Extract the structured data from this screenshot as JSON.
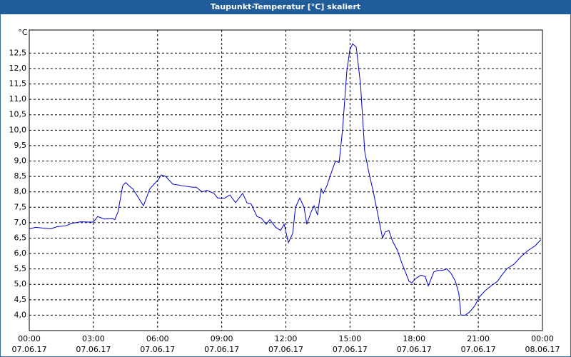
{
  "chart_data": {
    "type": "line",
    "title": "Taupunkt-Temperatur [°C] skaliert",
    "y_unit": "°C",
    "xlim": [
      0,
      24
    ],
    "xticks": [
      {
        "value": 0,
        "label": "00:00"
      },
      {
        "value": 3,
        "label": "03:00"
      },
      {
        "value": 6,
        "label": "06:00"
      },
      {
        "value": 9,
        "label": "09:00"
      },
      {
        "value": 12,
        "label": "12:00"
      },
      {
        "value": 15,
        "label": "15:00"
      },
      {
        "value": 18,
        "label": "18:00"
      },
      {
        "value": 21,
        "label": "21:00"
      },
      {
        "value": 24,
        "label": "00:00"
      }
    ],
    "xtick_dates": [
      "07.06.17",
      "07.06.17",
      "07.06.17",
      "07.06.17",
      "07.06.17",
      "07.06.17",
      "07.06.17",
      "07.06.17",
      "08.06.17"
    ],
    "ylim": [
      3.5,
      13.25
    ],
    "yticks": [
      {
        "value": 4,
        "label": "4,0"
      },
      {
        "value": 4.5,
        "label": "4,5"
      },
      {
        "value": 5,
        "label": "5,0"
      },
      {
        "value": 5.5,
        "label": "5,5"
      },
      {
        "value": 6,
        "label": "6,0"
      },
      {
        "value": 6.5,
        "label": "6,5"
      },
      {
        "value": 7,
        "label": "7,0"
      },
      {
        "value": 7.5,
        "label": "7,5"
      },
      {
        "value": 8,
        "label": "8,0"
      },
      {
        "value": 8.5,
        "label": "8,5"
      },
      {
        "value": 9,
        "label": "9,0"
      },
      {
        "value": 9.5,
        "label": "9,5"
      },
      {
        "value": 10,
        "label": "10,0"
      },
      {
        "value": 10.5,
        "label": "10,5"
      },
      {
        "value": 11,
        "label": "11,0"
      },
      {
        "value": 11.5,
        "label": "11,5"
      },
      {
        "value": 12,
        "label": "12,0"
      },
      {
        "value": 12.5,
        "label": "12,5"
      }
    ],
    "grid": true,
    "color": "#0000cc",
    "x": [
      0,
      0.3,
      0.7,
      1.0,
      1.3,
      1.7,
      2.0,
      2.4,
      2.8,
      3.0,
      3.2,
      3.5,
      3.9,
      4.0,
      4.15,
      4.37,
      4.51,
      4.74,
      4.84,
      5.34,
      5.64,
      6.04,
      6.17,
      6.38,
      6.71,
      7.14,
      7.64,
      7.81,
      8.08,
      8.31,
      8.64,
      8.81,
      9.15,
      9.38,
      9.65,
      9.98,
      10.18,
      10.38,
      10.65,
      10.85,
      11.08,
      11.25,
      11.52,
      11.75,
      11.92,
      12.12,
      12.32,
      12.45,
      12.65,
      12.85,
      12.98,
      13.18,
      13.32,
      13.48,
      13.65,
      13.75,
      13.92,
      14.09,
      14.32,
      14.49,
      14.65,
      14.85,
      14.99,
      15.12,
      15.29,
      15.49,
      15.69,
      15.89,
      16.09,
      16.32,
      16.52,
      16.65,
      16.82,
      16.99,
      17.22,
      17.42,
      17.59,
      17.76,
      17.89,
      18.09,
      18.32,
      18.52,
      18.66,
      18.92,
      19.09,
      19.33,
      19.53,
      19.73,
      19.93,
      20.09,
      20.19,
      20.39,
      20.59,
      20.83,
      21.06,
      21.33,
      21.6,
      21.9,
      22.1,
      22.33,
      22.66,
      23.0,
      23.33,
      23.66,
      23.93
    ],
    "values": [
      6.8,
      6.85,
      6.82,
      6.8,
      6.87,
      6.9,
      6.98,
      7.03,
      7.02,
      7.02,
      7.2,
      7.12,
      7.13,
      7.1,
      7.35,
      8.2,
      8.3,
      8.15,
      8.1,
      7.55,
      8.1,
      8.4,
      8.55,
      8.5,
      8.25,
      8.2,
      8.15,
      8.15,
      8.0,
      8.05,
      7.95,
      7.8,
      7.8,
      7.9,
      7.65,
      7.95,
      7.65,
      7.6,
      7.2,
      7.15,
      6.95,
      7.1,
      6.85,
      6.75,
      6.95,
      6.35,
      6.65,
      7.5,
      7.8,
      7.5,
      6.95,
      7.35,
      7.55,
      7.25,
      8.1,
      7.95,
      8.2,
      8.55,
      9.0,
      8.95,
      10.0,
      11.9,
      12.6,
      12.8,
      12.7,
      11.5,
      9.3,
      8.6,
      8.0,
      7.2,
      6.5,
      6.7,
      6.75,
      6.4,
      6.1,
      5.7,
      5.4,
      5.1,
      5.05,
      5.2,
      5.3,
      5.25,
      4.95,
      5.4,
      5.45,
      5.45,
      5.5,
      5.35,
      5.1,
      4.7,
      4.0,
      4.0,
      4.1,
      4.3,
      4.6,
      4.8,
      4.95,
      5.1,
      5.3,
      5.5,
      5.65,
      5.9,
      6.1,
      6.25,
      6.45
    ]
  }
}
